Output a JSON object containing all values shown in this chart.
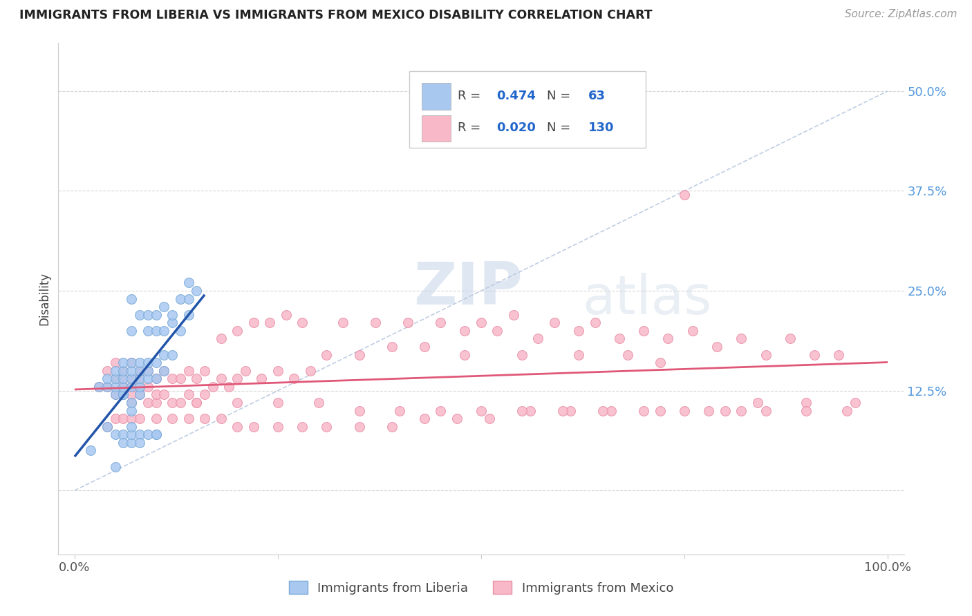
{
  "title": "IMMIGRANTS FROM LIBERIA VS IMMIGRANTS FROM MEXICO DISABILITY CORRELATION CHART",
  "source": "Source: ZipAtlas.com",
  "ylabel": "Disability",
  "color_liberia_fill": "#A8C8F0",
  "color_liberia_edge": "#7AAAD8",
  "color_liberia_line": "#2255AA",
  "color_mexico_fill": "#F8B8C8",
  "color_mexico_edge": "#E890A8",
  "color_mexico_line": "#E05878",
  "color_diagonal": "#B8C8E0",
  "color_grid": "#CCCCCC",
  "color_ytick": "#5599DD",
  "background_color": "#FFFFFF",
  "watermark": "ZIPatlas",
  "xlim": [
    -0.02,
    1.02
  ],
  "ylim": [
    -0.08,
    0.56
  ],
  "yticks": [
    0.0,
    0.125,
    0.25,
    0.375,
    0.5
  ],
  "ytick_labels": [
    "",
    "12.5%",
    "25.0%",
    "37.5%",
    "50.0%"
  ],
  "xtick_labels": [
    "0.0%",
    "100.0%"
  ],
  "liberia_R": "0.474",
  "liberia_N": "63",
  "mexico_R": "0.020",
  "mexico_N": "130",
  "liberia_x": [
    0.02,
    0.03,
    0.04,
    0.04,
    0.05,
    0.05,
    0.05,
    0.05,
    0.06,
    0.06,
    0.06,
    0.06,
    0.06,
    0.06,
    0.07,
    0.07,
    0.07,
    0.07,
    0.07,
    0.07,
    0.07,
    0.07,
    0.08,
    0.08,
    0.08,
    0.08,
    0.08,
    0.08,
    0.09,
    0.09,
    0.09,
    0.09,
    0.09,
    0.1,
    0.1,
    0.1,
    0.1,
    0.11,
    0.11,
    0.11,
    0.11,
    0.12,
    0.12,
    0.12,
    0.13,
    0.13,
    0.14,
    0.14,
    0.14,
    0.15,
    0.04,
    0.05,
    0.06,
    0.06,
    0.07,
    0.07,
    0.07,
    0.08,
    0.08,
    0.09,
    0.1,
    0.1,
    0.05
  ],
  "liberia_y": [
    0.05,
    0.13,
    0.13,
    0.14,
    0.12,
    0.13,
    0.14,
    0.15,
    0.12,
    0.12,
    0.13,
    0.14,
    0.15,
    0.16,
    0.1,
    0.11,
    0.13,
    0.14,
    0.15,
    0.16,
    0.2,
    0.24,
    0.12,
    0.13,
    0.14,
    0.15,
    0.16,
    0.22,
    0.14,
    0.15,
    0.16,
    0.2,
    0.22,
    0.14,
    0.16,
    0.2,
    0.22,
    0.15,
    0.17,
    0.2,
    0.23,
    0.17,
    0.21,
    0.22,
    0.2,
    0.24,
    0.22,
    0.24,
    0.26,
    0.25,
    0.08,
    0.07,
    0.07,
    0.06,
    0.06,
    0.07,
    0.08,
    0.07,
    0.06,
    0.07,
    0.07,
    0.07,
    0.03
  ],
  "mexico_x": [
    0.03,
    0.04,
    0.04,
    0.05,
    0.05,
    0.05,
    0.06,
    0.06,
    0.06,
    0.06,
    0.07,
    0.07,
    0.07,
    0.07,
    0.07,
    0.08,
    0.08,
    0.08,
    0.08,
    0.09,
    0.09,
    0.09,
    0.1,
    0.1,
    0.1,
    0.11,
    0.11,
    0.12,
    0.12,
    0.13,
    0.13,
    0.14,
    0.14,
    0.15,
    0.15,
    0.16,
    0.16,
    0.17,
    0.18,
    0.18,
    0.19,
    0.2,
    0.2,
    0.21,
    0.22,
    0.23,
    0.24,
    0.25,
    0.26,
    0.27,
    0.28,
    0.29,
    0.31,
    0.33,
    0.35,
    0.37,
    0.39,
    0.41,
    0.43,
    0.45,
    0.48,
    0.5,
    0.52,
    0.54,
    0.57,
    0.59,
    0.62,
    0.64,
    0.67,
    0.7,
    0.73,
    0.76,
    0.79,
    0.82,
    0.85,
    0.88,
    0.91,
    0.94,
    0.04,
    0.05,
    0.06,
    0.07,
    0.08,
    0.1,
    0.12,
    0.14,
    0.16,
    0.18,
    0.2,
    0.22,
    0.25,
    0.28,
    0.31,
    0.35,
    0.39,
    0.43,
    0.47,
    0.51,
    0.56,
    0.61,
    0.66,
    0.72,
    0.78,
    0.84,
    0.9,
    0.96,
    0.15,
    0.2,
    0.25,
    0.3,
    0.35,
    0.4,
    0.45,
    0.5,
    0.55,
    0.6,
    0.65,
    0.7,
    0.75,
    0.8,
    0.85,
    0.9,
    0.95,
    0.75,
    0.82,
    0.55,
    0.62,
    0.68,
    0.72,
    0.48
  ],
  "mexico_y": [
    0.13,
    0.13,
    0.15,
    0.12,
    0.14,
    0.16,
    0.12,
    0.13,
    0.14,
    0.15,
    0.11,
    0.12,
    0.13,
    0.14,
    0.16,
    0.12,
    0.13,
    0.14,
    0.15,
    0.11,
    0.13,
    0.15,
    0.11,
    0.12,
    0.14,
    0.12,
    0.15,
    0.11,
    0.14,
    0.11,
    0.14,
    0.12,
    0.15,
    0.11,
    0.14,
    0.12,
    0.15,
    0.13,
    0.14,
    0.19,
    0.13,
    0.14,
    0.2,
    0.15,
    0.21,
    0.14,
    0.21,
    0.15,
    0.22,
    0.14,
    0.21,
    0.15,
    0.17,
    0.21,
    0.17,
    0.21,
    0.18,
    0.21,
    0.18,
    0.21,
    0.2,
    0.21,
    0.2,
    0.22,
    0.19,
    0.21,
    0.2,
    0.21,
    0.19,
    0.2,
    0.19,
    0.2,
    0.18,
    0.19,
    0.17,
    0.19,
    0.17,
    0.17,
    0.08,
    0.09,
    0.09,
    0.09,
    0.09,
    0.09,
    0.09,
    0.09,
    0.09,
    0.09,
    0.08,
    0.08,
    0.08,
    0.08,
    0.08,
    0.08,
    0.08,
    0.09,
    0.09,
    0.09,
    0.1,
    0.1,
    0.1,
    0.1,
    0.1,
    0.11,
    0.11,
    0.11,
    0.11,
    0.11,
    0.11,
    0.11,
    0.1,
    0.1,
    0.1,
    0.1,
    0.1,
    0.1,
    0.1,
    0.1,
    0.1,
    0.1,
    0.1,
    0.1,
    0.1,
    0.37,
    0.1,
    0.17,
    0.17,
    0.17,
    0.16,
    0.17
  ]
}
